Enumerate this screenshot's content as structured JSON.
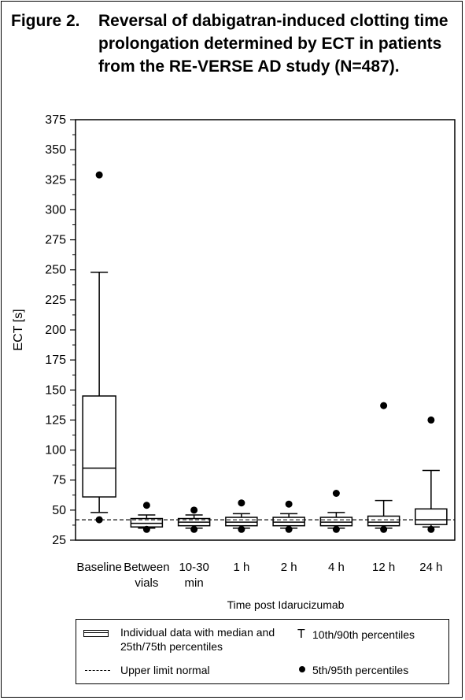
{
  "figure": {
    "label": "Figure 2.",
    "title": "Reversal of dabigatran-induced clotting time prolongation determined by ECT in patients from the RE-VERSE AD study (N=487)."
  },
  "chart_data": {
    "type": "box",
    "title": "Reversal of dabigatran-induced clotting time prolongation determined by ECT in patients from the RE-VERSE AD study (N=487).",
    "xlabel": "Time post Idarucizumab",
    "ylabel": "ECT [s]",
    "ylim": [
      25,
      375
    ],
    "yticks": [
      25,
      50,
      75,
      100,
      125,
      150,
      175,
      200,
      225,
      250,
      275,
      300,
      325,
      350,
      375
    ],
    "grid": false,
    "upper_limit_normal": 42,
    "categories": [
      [
        "Baseline"
      ],
      [
        "Between",
        "vials"
      ],
      [
        "10-30",
        "min"
      ],
      [
        "1 h"
      ],
      [
        "2 h"
      ],
      [
        "4 h"
      ],
      [
        "12 h"
      ],
      [
        "24 h"
      ]
    ],
    "boxes": [
      {
        "p5": 42,
        "p10": 48,
        "q1": 61,
        "median": 85,
        "q3": 145,
        "p90": 248,
        "p95": 329
      },
      {
        "p5": 34,
        "p10": 35,
        "q1": 36,
        "median": 39,
        "q3": 43,
        "p90": 46,
        "p95": 54
      },
      {
        "p5": 34,
        "p10": 35,
        "q1": 37,
        "median": 40,
        "q3": 43,
        "p90": 46,
        "p95": 50
      },
      {
        "p5": 34,
        "p10": 35,
        "q1": 37,
        "median": 40,
        "q3": 44,
        "p90": 47,
        "p95": 56
      },
      {
        "p5": 34,
        "p10": 35,
        "q1": 37,
        "median": 40,
        "q3": 44,
        "p90": 47,
        "p95": 55
      },
      {
        "p5": 34,
        "p10": 35,
        "q1": 37,
        "median": 40,
        "q3": 44,
        "p90": 48,
        "p95": 64
      },
      {
        "p5": 34,
        "p10": 35,
        "q1": 37,
        "median": 40,
        "q3": 45,
        "p90": 58,
        "p95": 137
      },
      {
        "p5": 34,
        "p10": 36,
        "q1": 38,
        "median": 42,
        "q3": 51,
        "p90": 83,
        "p95": 125
      }
    ]
  },
  "legend": {
    "box": "Individual data with median and 25th/75th percentiles",
    "whisker_symbol": "T",
    "whisker": "10th/90th percentiles",
    "dashed": "Upper limit normal",
    "dot": "5th/95th percentiles"
  }
}
